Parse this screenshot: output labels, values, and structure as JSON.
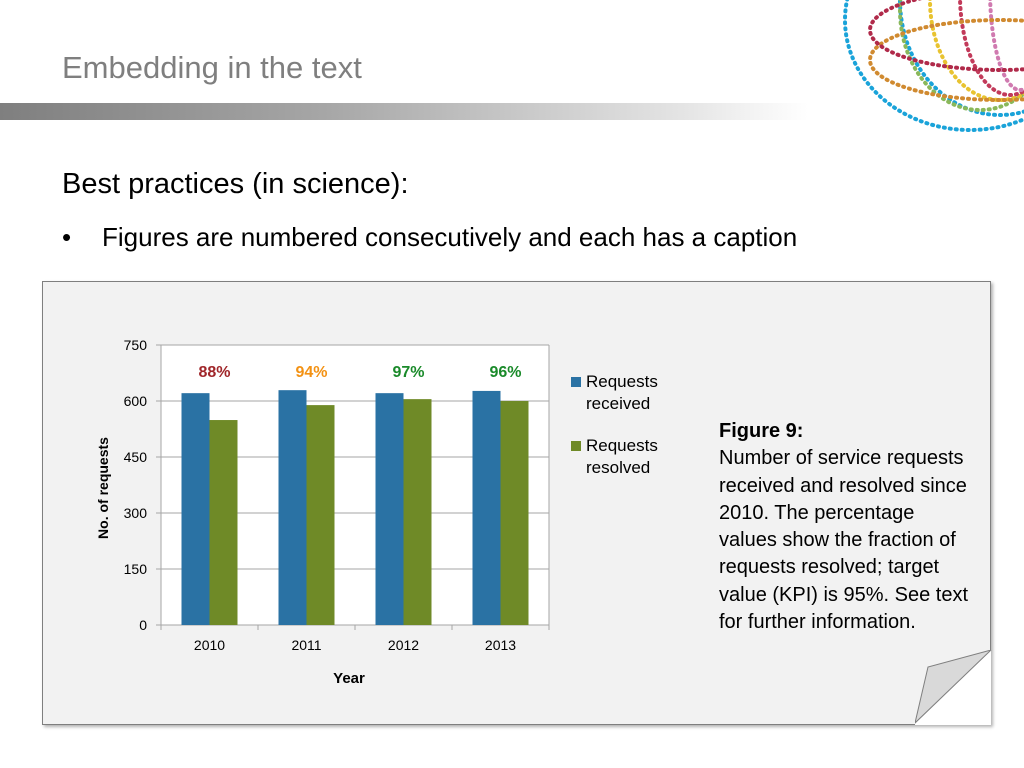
{
  "slide": {
    "title": "Embedding in the text",
    "heading": "Best practices (in science):",
    "bullet_marker": "•",
    "bullets": [
      "Figures are numbered consecutively and each has a caption"
    ]
  },
  "caption": {
    "label": "Figure 9:",
    "text": "Number of service requests received and resolved since 2010. The percentage values show the fraction of requests resolved; target value (KPI) is 95%. See text for further information."
  },
  "colors": {
    "received": "#2a72a4",
    "resolved": "#6f8a27",
    "red": "#a0262a",
    "orange": "#f39214",
    "green": "#1a8a2a"
  },
  "chart_data": {
    "type": "bar",
    "categories": [
      "2010",
      "2011",
      "2012",
      "2013"
    ],
    "series": [
      {
        "name": "Requests received",
        "values": [
          621,
          629,
          621,
          627
        ]
      },
      {
        "name": "Requests resolved",
        "values": [
          549,
          589,
          605,
          600
        ]
      }
    ],
    "annotations": [
      {
        "category": "2010",
        "text": "88%",
        "color": "#a0262a"
      },
      {
        "category": "2011",
        "text": "94%",
        "color": "#f39214"
      },
      {
        "category": "2012",
        "text": "97%",
        "color": "#1a8a2a"
      },
      {
        "category": "2013",
        "text": "96%",
        "color": "#1a8a2a"
      }
    ],
    "xlabel": "Year",
    "ylabel": "No. of requests",
    "ylim": [
      0,
      750
    ],
    "yticks": [
      0,
      150,
      300,
      450,
      600,
      750
    ],
    "grid": true,
    "legend": "right"
  }
}
